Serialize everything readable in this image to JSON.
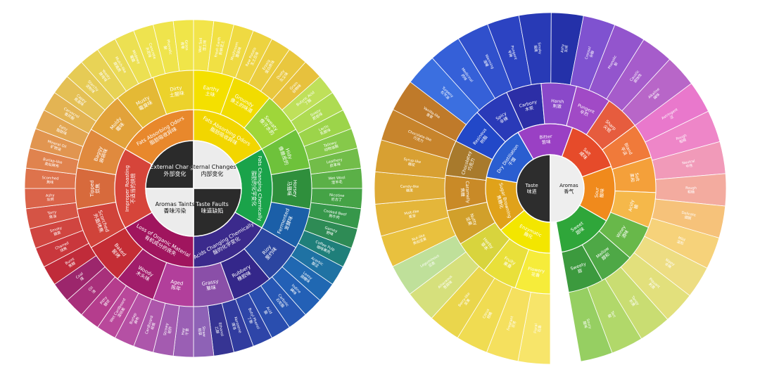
{
  "left_wheel": {
    "core": [
      {
        "en": "External Changes",
        "zh": "外部变化",
        "color": "#2b2b2b",
        "text": "#ffffff"
      },
      {
        "en": "Internal Changes",
        "zh": "内部变化",
        "color": "#ececec",
        "text": "#111111"
      },
      {
        "en": "Taste Faults",
        "zh": "味道缺陷",
        "color": "#2b2b2b",
        "text": "#ffffff"
      },
      {
        "en": "Aromas Taints",
        "zh": "香味污染",
        "color": "#ececec",
        "text": "#111111"
      }
    ],
    "ring2": [
      {
        "en": "Fats Absorbing Odors",
        "zh": "脂肪吸收异味",
        "color": "#f2d600"
      },
      {
        "en": "Fats Changing Chemically",
        "zh": "脂肪的化学变化",
        "color": "#1aa34a"
      },
      {
        "en": "Acids Changing Chemically",
        "zh": "酸的化学变化",
        "color": "#3b2a8c"
      },
      {
        "en": "Loss of Organic Material",
        "zh": "有机成分的丧失",
        "color": "#a0155e"
      },
      {
        "en": "Improper Roasting",
        "zh": "不适当的烘焙",
        "color": "#d6453a"
      },
      {
        "en": "Fats Absorbing Odors",
        "zh": "脂肪吸收异味",
        "color": "#e8882c"
      }
    ],
    "ring3": [
      {
        "en": "Earthy",
        "zh": "土味",
        "color": "#f4e000"
      },
      {
        "en": "Groundy",
        "zh": "像土的味道",
        "color": "#f1dc00"
      },
      {
        "en": "Sweaty",
        "zh": "像汗水的",
        "color": "#9fd63a"
      },
      {
        "en": "Hidy",
        "zh": "像兽皮的",
        "color": "#6ec23b"
      },
      {
        "en": "Horsey",
        "zh": "马骚味",
        "color": "#2f8f3c"
      },
      {
        "en": "Fermented",
        "zh": "发酵味",
        "color": "#1b5fa8"
      },
      {
        "en": "Rioy",
        "zh": "里约味",
        "color": "#2b45a0"
      },
      {
        "en": "Rubbery",
        "zh": "橡胶味",
        "color": "#34278a"
      },
      {
        "en": "Grassy",
        "zh": "草味",
        "color": "#8a4fa8"
      },
      {
        "en": "Aged",
        "zh": "陈年",
        "color": "#b23f9b"
      },
      {
        "en": "Woody",
        "zh": "木头味",
        "color": "#a11d6b"
      },
      {
        "en": "Baked",
        "zh": "窖烤",
        "color": "#c42d35"
      },
      {
        "en": "Scorched",
        "zh": "外面烤焦",
        "color": "#d0433a"
      },
      {
        "en": "Tipped",
        "zh": "烘焦",
        "color": "#d76a3c"
      },
      {
        "en": "Baggy",
        "zh": "麻袋味",
        "color": "#e08a3e"
      },
      {
        "en": "Moldy",
        "zh": "霉味",
        "color": "#e2a23a"
      },
      {
        "en": "Musty",
        "zh": "霉臭味",
        "color": "#e4b935"
      },
      {
        "en": "Dirty",
        "zh": "土腥味",
        "color": "#ecd22b"
      }
    ],
    "ring4": [
      {
        "en": "Wet Soil",
        "zh": "湿土味",
        "color": "#f2e44a"
      },
      {
        "en": "Fresh Earth",
        "zh": "新鲜泥土",
        "color": "#f1e043"
      },
      {
        "en": "Mushroom",
        "zh": "蘑菇味",
        "color": "#efda42"
      },
      {
        "en": "Raw Potato",
        "zh": "生土豆味",
        "color": "#edd340"
      },
      {
        "en": "Erpsig",
        "zh": "蛋白质味",
        "color": "#ebcd3f"
      },
      {
        "en": "Dusty",
        "zh": "灰尘味",
        "color": "#e9c73e"
      },
      {
        "en": "Grain",
        "zh": "谷物味",
        "color": "#e7c13d"
      },
      {
        "en": "Butyric Acid",
        "zh": "丁酸",
        "color": "#bfe05a"
      },
      {
        "en": "Soapy",
        "zh": "肥皂味",
        "color": "#aedb52"
      },
      {
        "en": "Lactic",
        "zh": "乳酸味",
        "color": "#9cd44a"
      },
      {
        "en": "Tallowy",
        "zh": "动物油脂",
        "color": "#86c94a"
      },
      {
        "en": "Leathery",
        "zh": "皮革味",
        "color": "#72bd49"
      },
      {
        "en": "Wet Wool",
        "zh": "湿羊毛",
        "color": "#5bb047"
      },
      {
        "en": "Nicotine",
        "zh": "尼古丁",
        "color": "#45a346"
      },
      {
        "en": "Cooked Beef",
        "zh": "熟牛肉",
        "color": "#36974a"
      },
      {
        "en": "Gamey",
        "zh": "野味",
        "color": "#2e8b55"
      },
      {
        "en": "Coffee Pulp",
        "zh": "咖啡果肉",
        "color": "#1f7f7a"
      },
      {
        "en": "Acerbic",
        "zh": "酸涩",
        "color": "#1f72a3"
      },
      {
        "en": "Leesy",
        "zh": "酒糟味",
        "color": "#2068b2"
      },
      {
        "en": "Iodine",
        "zh": "碘味",
        "color": "#2360b6"
      },
      {
        "en": "Carbolic",
        "zh": "石炭酸",
        "color": "#2757b4"
      },
      {
        "en": "Acid",
        "zh": "酸",
        "color": "#2a4eaf"
      },
      {
        "en": "Butyl Phenol",
        "zh": "丁酚",
        "color": "#2e45a8"
      },
      {
        "en": "Kerosene",
        "zh": "煤油",
        "color": "#313c9f"
      },
      {
        "en": "Ethanol",
        "zh": "乙醇",
        "color": "#363493"
      },
      {
        "en": "Straw",
        "zh": "稻草",
        "color": "#8e62b6"
      },
      {
        "en": "Hay",
        "zh": "干草",
        "color": "#9a5fb4"
      },
      {
        "en": "Strawy",
        "zh": "秸秆",
        "color": "#a45bb0"
      },
      {
        "en": "Cardboard",
        "zh": "纸板",
        "color": "#ad56ab"
      },
      {
        "en": "Burlap",
        "zh": "麻布",
        "color": "#b550a4"
      },
      {
        "en": "Wet Cardboard",
        "zh": "湿纸板",
        "color": "#b9489b"
      },
      {
        "en": "Pithy",
        "zh": "髓状",
        "color": "#b53d8d"
      },
      {
        "en": "Oil",
        "zh": "油",
        "color": "#a8307b"
      },
      {
        "en": "Coal",
        "zh": "煤",
        "color": "#9c266c"
      },
      {
        "en": "Burnt",
        "zh": "焦糊",
        "color": "#c02b3a"
      },
      {
        "en": "Charred",
        "zh": "烧焦",
        "color": "#c9373c"
      },
      {
        "en": "Smoky",
        "zh": "烟熏",
        "color": "#d04540"
      },
      {
        "en": "Tarry",
        "zh": "焦油",
        "color": "#d55445"
      },
      {
        "en": "Ashy",
        "zh": "灰烬",
        "color": "#da6349"
      },
      {
        "en": "Scorched",
        "zh": "焦味",
        "color": "#de734c"
      },
      {
        "en": "Burlap-like",
        "zh": "类似麻布",
        "color": "#e0834e"
      },
      {
        "en": "Mineral Oil",
        "zh": "矿物油",
        "color": "#e19550"
      },
      {
        "en": "Fatty",
        "zh": "脂肪味",
        "color": "#e2a652"
      },
      {
        "en": "Carvacrol",
        "zh": "香芹酚",
        "color": "#e3b453"
      },
      {
        "en": "Cappy",
        "zh": "瓶盖味",
        "color": "#e4c055"
      },
      {
        "en": "Starchy",
        "zh": "淀粉味",
        "color": "#e6cb55"
      },
      {
        "en": "Yeasty",
        "zh": "酵母味",
        "color": "#e8d356"
      },
      {
        "en": "Mulch-like",
        "zh": "腐殖质",
        "color": "#eada55"
      },
      {
        "en": "Mildewy",
        "zh": "霉菌",
        "color": "#ece052"
      },
      {
        "en": "Concrete",
        "zh": "水泥味",
        "color": "#eee34f"
      },
      {
        "en": "Phenolic",
        "zh": "酚",
        "color": "#efe44c"
      },
      {
        "en": "Grass",
        "zh": "青草",
        "color": "#f0e549"
      }
    ]
  },
  "right_wheel": {
    "core": [
      {
        "en": "Taste",
        "zh": "味道",
        "color": "#2d2d2d",
        "text": "#ffffff"
      },
      {
        "en": "Aromas",
        "zh": "香气",
        "color": "#eeeeee",
        "text": "#111111"
      }
    ],
    "ring2": [
      {
        "en": "Enzymatic",
        "zh": "酶化",
        "color": "#f3e600"
      },
      {
        "en": "Sugar Browning",
        "zh": "焦糖化",
        "color": "#e0a21a"
      },
      {
        "en": "Dry Distillation",
        "zh": "干馏",
        "color": "#2a5ed0"
      },
      {
        "en": "Bitter",
        "zh": "苦味",
        "color": "#9a40c4"
      },
      {
        "en": "Salt",
        "zh": "咸味",
        "color": "#e64b2a"
      },
      {
        "en": "Sour",
        "zh": "酸味",
        "color": "#f08a1c"
      },
      {
        "en": "Sweet",
        "zh": "甜味",
        "color": "#2fa63a"
      }
    ],
    "ring3": [
      {
        "en": "Flowery",
        "zh": "花香",
        "color": "#f6ec3a"
      },
      {
        "en": "Fruity",
        "zh": "果香",
        "color": "#e9e03a"
      },
      {
        "en": "Herby",
        "zh": "草本",
        "color": "#d8d43d"
      },
      {
        "en": "Nutty",
        "zh": "坚果",
        "color": "#d1a02b"
      },
      {
        "en": "Caramelly",
        "zh": "焦糖",
        "color": "#c98a27"
      },
      {
        "en": "Chocolatey",
        "zh": "巧克力",
        "color": "#a87a2c"
      },
      {
        "en": "Resinous",
        "zh": "树脂",
        "color": "#2248c8"
      },
      {
        "en": "Spicy",
        "zh": "辛辣",
        "color": "#2a3ab8"
      },
      {
        "en": "Carbony",
        "zh": "木炭",
        "color": "#2c2ea6"
      },
      {
        "en": "Harsh",
        "zh": "刺激",
        "color": "#8a48c9"
      },
      {
        "en": "Pungent",
        "zh": "辛烈",
        "color": "#a14ac6"
      },
      {
        "en": "Sharp",
        "zh": "尖锐",
        "color": "#e65c3e"
      },
      {
        "en": "Bland",
        "zh": "平淡",
        "color": "#f07a3a"
      },
      {
        "en": "Soft",
        "zh": "柔和",
        "color": "#f4a03a"
      },
      {
        "en": "Acidy",
        "zh": "酸",
        "color": "#f5b84a"
      },
      {
        "en": "Winey",
        "zh": "酒味",
        "color": "#68b84a"
      },
      {
        "en": "Mellow",
        "zh": "醇和",
        "color": "#4ea846"
      },
      {
        "en": "Sweety",
        "zh": "甜",
        "color": "#3c9a3e"
      }
    ],
    "ring4": [
      {
        "en": "Floral",
        "zh": "花香",
        "color": "#f7e56a"
      },
      {
        "en": "Fragrant",
        "zh": "芬芳",
        "color": "#f5e05e"
      },
      {
        "en": "Citrus",
        "zh": "柑橘",
        "color": "#f0dc52"
      },
      {
        "en": "Berry-like",
        "zh": "浆果",
        "color": "#ead64c"
      },
      {
        "en": "Alliaceous",
        "zh": "葱蒜味",
        "color": "#d6e07c"
      },
      {
        "en": "Leguminous",
        "zh": "豆类",
        "color": "#bfe09a"
      },
      {
        "en": "Nut-like",
        "zh": "类似坚果",
        "color": "#e9c13e"
      },
      {
        "en": "Malt-like",
        "zh": "麦芽",
        "color": "#e4b63a"
      },
      {
        "en": "Candy-like",
        "zh": "糖果",
        "color": "#deab36"
      },
      {
        "en": "Syrup-like",
        "zh": "糖浆",
        "color": "#d8a032"
      },
      {
        "en": "Chocolate-like",
        "zh": "巧克力",
        "color": "#c7842c"
      },
      {
        "en": "Vanilla-like",
        "zh": "香草",
        "color": "#bf7a2a"
      },
      {
        "en": "Turpeny",
        "zh": "松节油",
        "color": "#3b6fe0"
      },
      {
        "en": "Medicinal",
        "zh": "药味",
        "color": "#3560d8"
      },
      {
        "en": "Warming",
        "zh": "温暖",
        "color": "#3050cc"
      },
      {
        "en": "Pungent",
        "zh": "辛辣",
        "color": "#2c43c2"
      },
      {
        "en": "Smoky",
        "zh": "烟熏",
        "color": "#283ab6"
      },
      {
        "en": "Ashy",
        "zh": "灰烬",
        "color": "#2431a9"
      },
      {
        "en": "Creosol",
        "zh": "杂酚",
        "color": "#7f52d0"
      },
      {
        "en": "Phenolic",
        "zh": "酚",
        "color": "#9355cd"
      },
      {
        "en": "Caustic",
        "zh": "腐蚀性",
        "color": "#a65ccb"
      },
      {
        "en": "Alkaline",
        "zh": "碱味",
        "color": "#b866c8"
      },
      {
        "en": "Astringent",
        "zh": "涩",
        "color": "#e978cc"
      },
      {
        "en": "Rough",
        "zh": "粗糙",
        "color": "#ee86c8"
      },
      {
        "en": "Neutral",
        "zh": "中性",
        "color": "#f19ab9"
      },
      {
        "en": "Rough",
        "zh": "粗糙",
        "color": "#f3ab9f"
      },
      {
        "en": "Delicate",
        "zh": "细腻",
        "color": "#f6c27a"
      },
      {
        "en": "Mild",
        "zh": "温和",
        "color": "#f6d27a"
      },
      {
        "en": "Nippy",
        "zh": "辛辣",
        "color": "#eddd82"
      },
      {
        "en": "Piquant",
        "zh": "刺激",
        "color": "#e2e07c"
      },
      {
        "en": "Tangy",
        "zh": "刺激",
        "color": "#c9dd72"
      },
      {
        "en": "Tart",
        "zh": "酸",
        "color": "#b1d86a"
      },
      {
        "en": "Soury",
        "zh": "酸味",
        "color": "#96cf62"
      }
    ]
  }
}
